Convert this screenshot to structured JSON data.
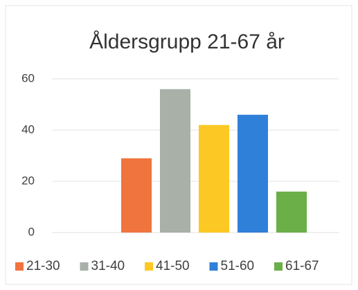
{
  "chart_data": {
    "type": "bar",
    "title": "Åldersgrupp 21-67 år",
    "series": [
      {
        "name": "21-30",
        "color": "#f0743e",
        "values": [
          29
        ]
      },
      {
        "name": "31-40",
        "color": "#a8b0a8",
        "values": [
          56
        ]
      },
      {
        "name": "41-50",
        "color": "#fcc823",
        "values": [
          42
        ]
      },
      {
        "name": "51-60",
        "color": "#2f80d8",
        "values": [
          46
        ]
      },
      {
        "name": "61-67",
        "color": "#6aaf48",
        "values": [
          16
        ]
      }
    ],
    "ylim": [
      0,
      60
    ],
    "yticks": [
      0,
      20,
      40,
      60
    ],
    "grid": true,
    "legend": "bottom"
  }
}
